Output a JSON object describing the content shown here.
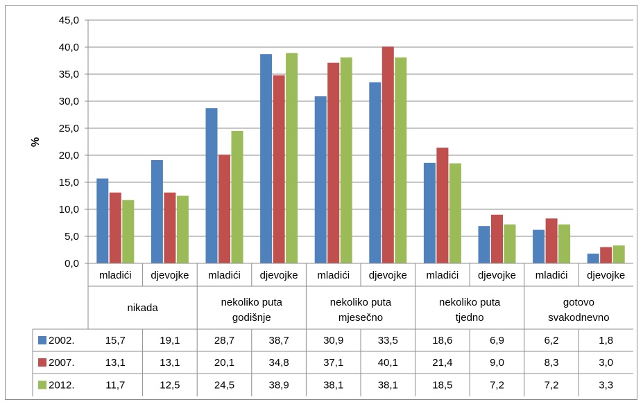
{
  "chart_data": {
    "type": "bar",
    "title": "",
    "xlabel": "",
    "ylabel": "%",
    "ylim": [
      0,
      45
    ],
    "yticks": [
      "0,0",
      "5,0",
      "10,0",
      "15,0",
      "20,0",
      "25,0",
      "30,0",
      "35,0",
      "40,0",
      "45,0"
    ],
    "grid": true,
    "legend": "data-table",
    "groups": [
      "nikada",
      "nekoliko puta godišnje",
      "nekoliko puta mjesečno",
      "nekoliko puta tjedno",
      "gotovo svakodnevno"
    ],
    "group_lines": [
      [
        "nikada"
      ],
      [
        "nekoliko puta",
        "godišnje"
      ],
      [
        "nekoliko puta",
        "mjesečno"
      ],
      [
        "nekoliko puta",
        "tjedno"
      ],
      [
        "gotovo",
        "svakodnevno"
      ]
    ],
    "subcategories": [
      "mladići",
      "djevojke",
      "mladići",
      "djevojke",
      "mladići",
      "djevojke",
      "mladići",
      "djevojke",
      "mladići",
      "djevojke"
    ],
    "series": [
      {
        "name": "2002.",
        "color": "#4f81bd",
        "values": [
          15.7,
          19.1,
          28.7,
          38.7,
          30.9,
          33.5,
          18.6,
          6.9,
          6.2,
          1.8
        ],
        "labels": [
          "15,7",
          "19,1",
          "28,7",
          "38,7",
          "30,9",
          "33,5",
          "18,6",
          "6,9",
          "6,2",
          "1,8"
        ]
      },
      {
        "name": "2007.",
        "color": "#c0504d",
        "values": [
          13.1,
          13.1,
          20.1,
          34.8,
          37.1,
          40.1,
          21.4,
          9.0,
          8.3,
          3.0
        ],
        "labels": [
          "13,1",
          "13,1",
          "20,1",
          "34,8",
          "37,1",
          "40,1",
          "21,4",
          "9,0",
          "8,3",
          "3,0"
        ]
      },
      {
        "name": "2012.",
        "color": "#9bbb59",
        "values": [
          11.7,
          12.5,
          24.5,
          38.9,
          38.1,
          38.1,
          18.5,
          7.2,
          7.2,
          3.3
        ],
        "labels": [
          "11,7",
          "12,5",
          "24,5",
          "38,9",
          "38,1",
          "38,1",
          "18,5",
          "7,2",
          "7,2",
          "3,3"
        ]
      }
    ]
  }
}
